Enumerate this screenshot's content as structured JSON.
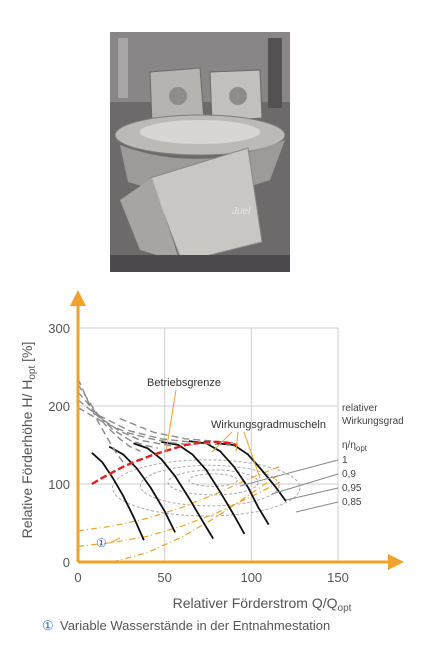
{
  "photo": {
    "description_alt": "",
    "signature_text": "Juel"
  },
  "chart_data": {
    "type": "line",
    "xlabel_main": "Relativer Förderstrom Q/Q",
    "xlabel_sub": "opt",
    "ylabel_main": "Relative Förderhöhe H/ H",
    "ylabel_sub": "opt",
    "ylabel_unit": " [%]",
    "xlim": [
      0,
      150
    ],
    "ylim": [
      0,
      300
    ],
    "x_ticks": [
      0,
      50,
      100,
      150
    ],
    "y_ticks": [
      0,
      100,
      200,
      300
    ],
    "grid": true,
    "annotations": {
      "betriebsgrenze": "Betriebsgrenze",
      "wirkungsgradmuscheln": "Wirkungsgradmuscheln",
      "relativer_line1": "relativer",
      "relativer_line2": "Wirkungsgrad",
      "eta_label_main": "η/η",
      "eta_label_sub": "opt",
      "marker_1": "①"
    },
    "efficiency_levels": [
      "1",
      "0,9",
      "0,95",
      "0,85"
    ],
    "pump_curves": [
      {
        "style": "solid",
        "points": [
          [
            8,
            140
          ],
          [
            14,
            128
          ],
          [
            20,
            108
          ],
          [
            26,
            85
          ],
          [
            32,
            58
          ],
          [
            38,
            28
          ]
        ]
      },
      {
        "style": "solid",
        "points": [
          [
            18,
            148
          ],
          [
            26,
            138
          ],
          [
            34,
            120
          ],
          [
            42,
            95
          ],
          [
            50,
            65
          ],
          [
            56,
            38
          ]
        ]
      },
      {
        "style": "solid",
        "points": [
          [
            32,
            152
          ],
          [
            40,
            146
          ],
          [
            48,
            132
          ],
          [
            56,
            110
          ],
          [
            64,
            82
          ],
          [
            72,
            52
          ],
          [
            78,
            30
          ]
        ]
      },
      {
        "style": "solid",
        "points": [
          [
            48,
            154
          ],
          [
            58,
            150
          ],
          [
            66,
            138
          ],
          [
            74,
            118
          ],
          [
            82,
            90
          ],
          [
            90,
            60
          ],
          [
            96,
            36
          ]
        ]
      },
      {
        "style": "solid",
        "points": [
          [
            64,
            155
          ],
          [
            74,
            152
          ],
          [
            82,
            142
          ],
          [
            90,
            122
          ],
          [
            98,
            96
          ],
          [
            104,
            70
          ],
          [
            110,
            48
          ]
        ]
      },
      {
        "style": "solid",
        "points": [
          [
            80,
            152
          ],
          [
            90,
            150
          ],
          [
            98,
            138
          ],
          [
            106,
            118
          ],
          [
            114,
            96
          ],
          [
            120,
            78
          ]
        ]
      },
      {
        "style": "dashed",
        "points": [
          [
            0,
            235
          ],
          [
            6,
            205
          ],
          [
            12,
            178
          ],
          [
            18,
            155
          ],
          [
            22,
            140
          ],
          [
            26,
            128
          ]
        ]
      },
      {
        "style": "dashed",
        "points": [
          [
            0,
            228
          ],
          [
            8,
            200
          ],
          [
            16,
            175
          ],
          [
            24,
            158
          ],
          [
            30,
            148
          ],
          [
            36,
            142
          ]
        ]
      },
      {
        "style": "dashed",
        "points": [
          [
            0,
            218
          ],
          [
            10,
            192
          ],
          [
            20,
            170
          ],
          [
            30,
            156
          ],
          [
            38,
            150
          ],
          [
            46,
            146
          ]
        ]
      },
      {
        "style": "dashed",
        "points": [
          [
            0,
            208
          ],
          [
            12,
            186
          ],
          [
            24,
            168
          ],
          [
            36,
            156
          ],
          [
            46,
            152
          ],
          [
            56,
            148
          ]
        ]
      },
      {
        "style": "dashed",
        "points": [
          [
            0,
            198
          ],
          [
            14,
            180
          ],
          [
            28,
            166
          ],
          [
            42,
            158
          ],
          [
            54,
            153
          ],
          [
            66,
            150
          ]
        ]
      },
      {
        "style": "dashed",
        "points": [
          [
            12,
            188
          ],
          [
            30,
            168
          ],
          [
            48,
            158
          ],
          [
            64,
            154
          ],
          [
            78,
            151
          ],
          [
            88,
            150
          ]
        ]
      },
      {
        "style": "dashed",
        "points": [
          [
            24,
            184
          ],
          [
            44,
            166
          ],
          [
            62,
            158
          ],
          [
            78,
            155
          ],
          [
            92,
            152
          ]
        ]
      }
    ],
    "operating_limit": [
      [
        8,
        100
      ],
      [
        14,
        108
      ],
      [
        20,
        115
      ],
      [
        26,
        122
      ],
      [
        32,
        128
      ],
      [
        38,
        133
      ],
      [
        44,
        138
      ],
      [
        50,
        142
      ],
      [
        56,
        146
      ],
      [
        62,
        150
      ],
      [
        68,
        152
      ],
      [
        74,
        154
      ],
      [
        80,
        154
      ],
      [
        86,
        153
      ],
      [
        92,
        150
      ]
    ],
    "system_curves": [
      [
        [
          0,
          20
        ],
        [
          20,
          25
        ],
        [
          40,
          33
        ],
        [
          60,
          46
        ],
        [
          80,
          63
        ],
        [
          100,
          84
        ],
        [
          118,
          104
        ]
      ],
      [
        [
          0,
          40
        ],
        [
          20,
          46
        ],
        [
          40,
          56
        ],
        [
          60,
          70
        ],
        [
          80,
          88
        ],
        [
          100,
          108
        ],
        [
          116,
          122
        ]
      ],
      [
        [
          20,
          0
        ],
        [
          40,
          12
        ],
        [
          60,
          32
        ],
        [
          80,
          58
        ],
        [
          100,
          88
        ],
        [
          116,
          112
        ]
      ]
    ],
    "efficiency_shells": [
      {
        "cx": 78,
        "cy": 105,
        "rx": 14,
        "ry": 8
      },
      {
        "cx": 78,
        "cy": 102,
        "rx": 26,
        "ry": 16
      },
      {
        "cx": 76,
        "cy": 98,
        "rx": 40,
        "ry": 26
      },
      {
        "cx": 74,
        "cy": 95,
        "rx": 54,
        "ry": 36
      }
    ]
  },
  "footnote": {
    "marker": "①",
    "text": "Variable Wasserstände in der Entnahmestation"
  }
}
